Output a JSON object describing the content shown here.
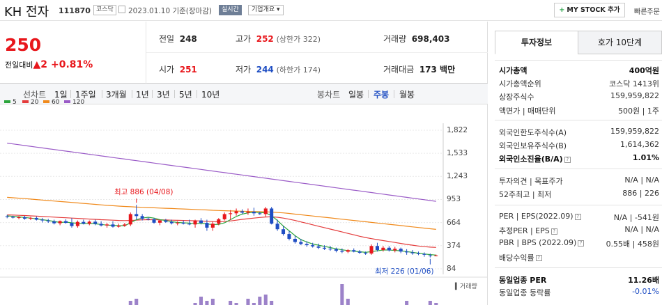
{
  "header": {
    "company": "KH 전자",
    "code": "111870",
    "market_badge": "코스닥",
    "date_text": "2023.01.10 기준(장마감)",
    "realtime_badge": "실시간",
    "overview_button": "기업개요 ▾",
    "mystock_plus": "+",
    "mystock_label": "MY STOCK 추가",
    "quick_order": "빠른주문"
  },
  "price": {
    "current": "250",
    "change_label": "전일대비",
    "change_arrow": "▲",
    "change_value": "2",
    "change_pct": "+0.81%"
  },
  "summary": {
    "prev_close_label": "전일",
    "prev_close": "248",
    "high_label": "고가",
    "high": "252",
    "upper_limit": "(상한가 322)",
    "volume_label": "거래량",
    "volume": "698,403",
    "open_label": "시가",
    "open": "251",
    "low_label": "저가",
    "low": "244",
    "lower_limit": "(하한가 174)",
    "amount_label": "거래대금",
    "amount": "173 백만"
  },
  "line_chart_tabs": {
    "label": "선차트",
    "items": [
      "1일",
      "1주일",
      "3개월",
      "1년",
      "3년",
      "5년",
      "10년"
    ]
  },
  "candle_chart_tabs": {
    "label": "봉차트",
    "items": [
      "일봉",
      "주봉",
      "월봉"
    ],
    "active": "주봉"
  },
  "colors": {
    "up": "#e8171c",
    "down": "#1f4ec3",
    "ma5": "#2ca53c",
    "ma20": "#e43b3b",
    "ma60": "#f08a1c",
    "ma120": "#9a5bc7",
    "volume": "#9c82c9"
  },
  "chart_data": {
    "type": "candlestick",
    "ylim": [
      84,
      1822
    ],
    "yticks": [
      "1,822",
      "1,533",
      "1,243",
      "953",
      "664",
      "374",
      "84"
    ],
    "ytick_values": [
      1822,
      1533,
      1243,
      953,
      664,
      374,
      84
    ],
    "legend": [
      {
        "name": "5",
        "color": "#2ca53c"
      },
      {
        "name": "20",
        "color": "#e43b3b"
      },
      {
        "name": "60",
        "color": "#f08a1c"
      },
      {
        "name": "120",
        "color": "#9a5bc7"
      }
    ],
    "high_annotation": "최고 886 (04/08)",
    "low_annotation": "최저 226 (01/06)",
    "volume_label": "거래량",
    "candles": [
      [
        742,
        760,
        718,
        735
      ],
      [
        735,
        750,
        715,
        725
      ],
      [
        725,
        745,
        705,
        730
      ],
      [
        730,
        748,
        700,
        712
      ],
      [
        712,
        735,
        695,
        722
      ],
      [
        722,
        740,
        690,
        700
      ],
      [
        700,
        722,
        665,
        690
      ],
      [
        690,
        710,
        660,
        678
      ],
      [
        678,
        700,
        640,
        655
      ],
      [
        655,
        690,
        630,
        682
      ],
      [
        682,
        705,
        650,
        660
      ],
      [
        660,
        720,
        600,
        620
      ],
      [
        620,
        690,
        600,
        672
      ],
      [
        672,
        700,
        640,
        650
      ],
      [
        650,
        690,
        630,
        675
      ],
      [
        675,
        700,
        630,
        648
      ],
      [
        648,
        680,
        615,
        628
      ],
      [
        628,
        660,
        600,
        640
      ],
      [
        640,
        680,
        600,
        612
      ],
      [
        612,
        650,
        600,
        625
      ],
      [
        625,
        660,
        610,
        640
      ],
      [
        640,
        790,
        620,
        770
      ],
      [
        770,
        886,
        700,
        745
      ],
      [
        745,
        770,
        690,
        712
      ],
      [
        712,
        730,
        690,
        705
      ],
      [
        705,
        720,
        650,
        662
      ],
      [
        662,
        700,
        630,
        690
      ],
      [
        690,
        710,
        660,
        672
      ],
      [
        672,
        700,
        640,
        655
      ],
      [
        655,
        680,
        630,
        662
      ],
      [
        662,
        690,
        640,
        650
      ],
      [
        650,
        700,
        630,
        640
      ],
      [
        640,
        700,
        600,
        690
      ],
      [
        690,
        720,
        640,
        660
      ],
      [
        660,
        700,
        560,
        600
      ],
      [
        600,
        680,
        560,
        650
      ],
      [
        650,
        720,
        630,
        705
      ],
      [
        705,
        790,
        690,
        770
      ],
      [
        770,
        820,
        700,
        780
      ],
      [
        780,
        840,
        750,
        805
      ],
      [
        805,
        830,
        770,
        788
      ],
      [
        788,
        840,
        760,
        800
      ],
      [
        800,
        850,
        750,
        780
      ],
      [
        780,
        800,
        760,
        770
      ],
      [
        770,
        860,
        740,
        840
      ],
      [
        840,
        860,
        640,
        650
      ],
      [
        650,
        700,
        560,
        580
      ],
      [
        580,
        620,
        500,
        520
      ],
      [
        520,
        560,
        440,
        460
      ],
      [
        460,
        500,
        400,
        420
      ],
      [
        420,
        460,
        380,
        395
      ],
      [
        395,
        430,
        360,
        380
      ],
      [
        380,
        410,
        350,
        365
      ],
      [
        365,
        400,
        330,
        348
      ],
      [
        348,
        380,
        320,
        335
      ],
      [
        335,
        370,
        310,
        330
      ],
      [
        330,
        350,
        290,
        310
      ],
      [
        310,
        340,
        280,
        298
      ],
      [
        298,
        330,
        280,
        318
      ],
      [
        318,
        340,
        290,
        300
      ],
      [
        300,
        320,
        270,
        285
      ],
      [
        285,
        300,
        260,
        275
      ],
      [
        275,
        390,
        260,
        370
      ],
      [
        370,
        410,
        300,
        320
      ],
      [
        320,
        370,
        300,
        348
      ],
      [
        348,
        370,
        300,
        315
      ],
      [
        315,
        360,
        290,
        335
      ],
      [
        335,
        350,
        280,
        300
      ],
      [
        300,
        330,
        260,
        290
      ],
      [
        290,
        320,
        260,
        278
      ],
      [
        278,
        300,
        255,
        270
      ],
      [
        270,
        290,
        235,
        260
      ],
      [
        250,
        275,
        226,
        248
      ],
      [
        248,
        262,
        240,
        250
      ]
    ],
    "ma5": [
      748,
      742,
      735,
      728,
      720,
      710,
      700,
      690,
      678,
      665,
      670,
      660,
      655,
      650,
      652,
      648,
      640,
      632,
      630,
      625,
      625,
      660,
      700,
      720,
      730,
      720,
      700,
      690,
      675,
      665,
      660,
      658,
      650,
      655,
      645,
      640,
      640,
      660,
      700,
      740,
      770,
      785,
      795,
      790,
      785,
      750,
      690,
      620,
      560,
      500,
      450,
      420,
      395,
      380,
      365,
      350,
      335,
      322,
      312,
      305,
      298,
      290,
      300,
      310,
      320,
      320,
      315,
      310,
      300,
      290,
      280,
      270,
      262,
      256
    ],
    "ma20": [
      760,
      758,
      755,
      752,
      748,
      744,
      740,
      736,
      732,
      728,
      724,
      720,
      716,
      712,
      708,
      704,
      700,
      697,
      694,
      690,
      688,
      690,
      694,
      698,
      700,
      700,
      698,
      696,
      694,
      692,
      690,
      688,
      686,
      684,
      680,
      676,
      674,
      676,
      684,
      694,
      704,
      712,
      720,
      728,
      734,
      736,
      730,
      720,
      706,
      690,
      672,
      654,
      636,
      618,
      600,
      582,
      564,
      546,
      528,
      510,
      492,
      476,
      462,
      450,
      438,
      426,
      414,
      402,
      390,
      380,
      370,
      362,
      356,
      352
    ],
    "ma60": [
      980,
      975,
      970,
      964,
      958,
      952,
      946,
      940,
      934,
      928,
      922,
      916,
      910,
      904,
      898,
      892,
      886,
      880,
      875,
      870,
      866,
      862,
      858,
      855,
      852,
      849,
      846,
      843,
      840,
      837,
      834,
      831,
      828,
      825,
      822,
      818,
      815,
      812,
      810,
      808,
      806,
      804,
      802,
      800,
      798,
      795,
      790,
      785,
      778,
      770,
      762,
      754,
      746,
      738,
      730,
      722,
      714,
      706,
      698,
      690,
      682,
      674,
      666,
      658,
      650,
      642,
      634,
      626,
      618,
      610,
      602,
      594,
      586,
      578
    ],
    "ma120": [
      1660,
      1650,
      1640,
      1630,
      1620,
      1610,
      1600,
      1590,
      1580,
      1570,
      1560,
      1550,
      1540,
      1530,
      1520,
      1510,
      1500,
      1490,
      1480,
      1470,
      1460,
      1450,
      1440,
      1430,
      1420,
      1410,
      1400,
      1390,
      1380,
      1370,
      1360,
      1350,
      1340,
      1330,
      1320,
      1310,
      1300,
      1290,
      1280,
      1270,
      1260,
      1250,
      1240,
      1230,
      1220,
      1210,
      1200,
      1190,
      1180,
      1170,
      1160,
      1150,
      1140,
      1130,
      1120,
      1110,
      1100,
      1090,
      1080,
      1070,
      1060,
      1050,
      1040,
      1030,
      1020,
      1010,
      1000,
      990,
      980,
      970,
      960,
      950,
      940,
      930
    ],
    "volume": [
      0,
      0,
      0,
      0,
      0,
      0,
      0,
      0,
      0,
      0,
      0,
      0,
      0,
      0,
      0,
      0,
      0,
      0,
      0,
      0,
      0,
      0.2,
      0.3,
      0,
      0,
      0,
      0,
      0,
      0,
      0,
      0,
      0,
      0.1,
      0.4,
      0.2,
      0.3,
      0,
      0,
      0.2,
      0.1,
      0,
      0.3,
      0.1,
      0.4,
      0.5,
      0.2,
      0,
      0,
      0,
      0,
      0,
      0,
      0,
      0,
      0,
      0,
      0,
      1.0,
      0.3,
      0,
      0,
      0,
      0,
      0,
      0,
      0,
      0,
      0,
      0.2,
      0,
      0,
      0,
      0.2,
      0.1
    ]
  },
  "invest_info": {
    "tab_active": "투자정보",
    "tab_other": "호가 10단계",
    "rows_a": [
      {
        "k": "시가총액",
        "v": "400억원",
        "bold": true
      },
      {
        "k": "시가총액순위",
        "v": "코스닥 1413위"
      },
      {
        "k": "상장주식수",
        "v": "159,959,822"
      },
      {
        "k": "액면가 | 매매단위",
        "v": "500원 | 1주"
      }
    ],
    "rows_b": [
      {
        "k": "외국인한도주식수(A)",
        "v": "159,959,822"
      },
      {
        "k": "외국인보유주식수(B)",
        "v": "1,614,362"
      },
      {
        "k": "외국인소진율(B/A)",
        "v": "1.01%",
        "bold": true,
        "help": true
      }
    ],
    "rows_c": [
      {
        "k": "투자의견 | 목표주가",
        "v": "N/A | N/A"
      },
      {
        "k": "52주최고 | 최저",
        "v": "886 | 226"
      }
    ],
    "rows_d": [
      {
        "k": "PER | EPS(2022.09)",
        "v": "N/A | -541원",
        "help": true
      },
      {
        "k": "추정PER | EPS",
        "v": "N/A | N/A",
        "help": true
      },
      {
        "k": "PBR | BPS (2022.09)",
        "v": "0.55배 | 458원",
        "help": true
      },
      {
        "k": "배당수익률",
        "v": "",
        "help": true
      }
    ],
    "rows_e": [
      {
        "k": "동일업종 PER",
        "v": "11.26배",
        "bold": true
      },
      {
        "k": "동일업종 등락률",
        "v": "-0.01%",
        "neg": true
      }
    ]
  }
}
